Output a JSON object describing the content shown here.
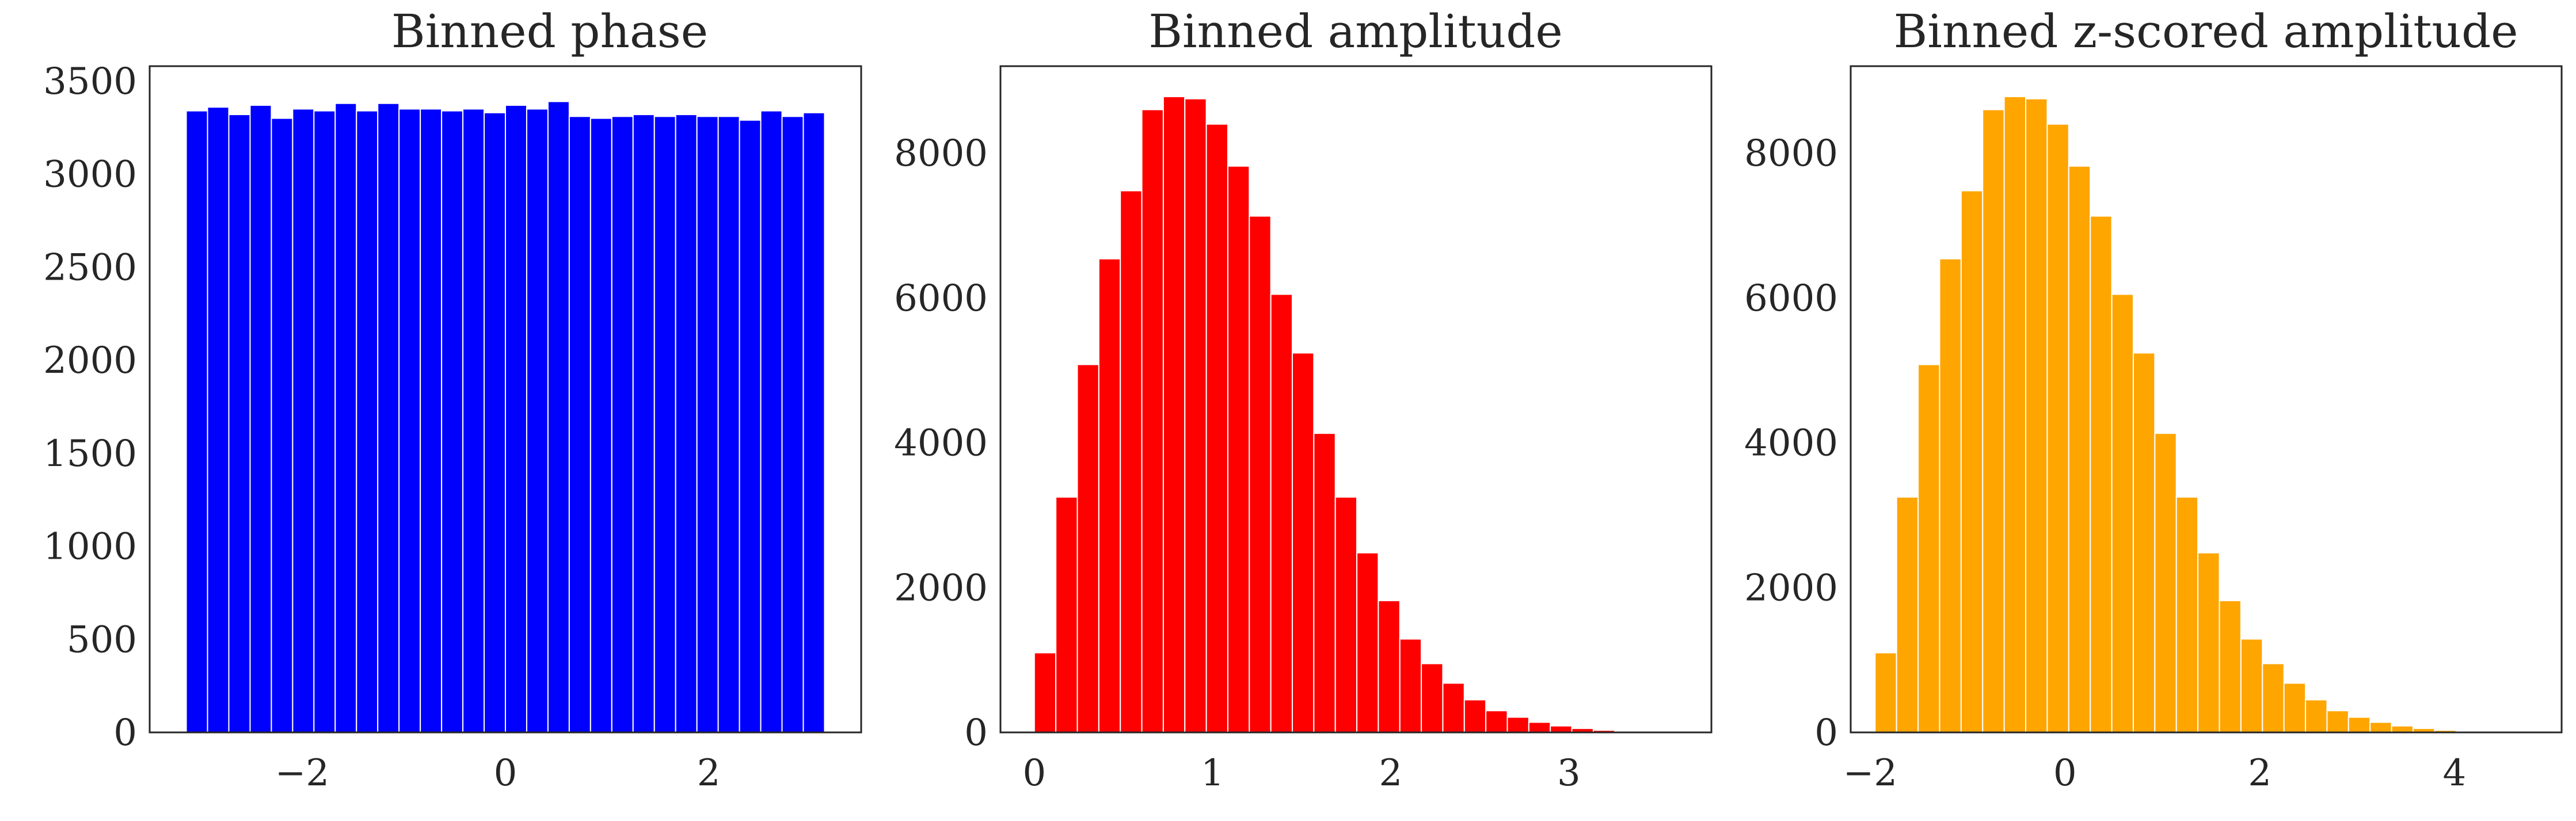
{
  "chart_data": [
    {
      "type": "bar",
      "title": "Binned phase",
      "xlabel": "",
      "ylabel": "",
      "grid": false,
      "color": "#0000ff",
      "xlim": [
        -3.5,
        3.5
      ],
      "ylim": [
        0,
        3580
      ],
      "xticks": [
        -2,
        0,
        2
      ],
      "xtick_labels": [
        "−2",
        "0",
        "2"
      ],
      "yticks": [
        0,
        500,
        1000,
        1500,
        2000,
        2500,
        3000,
        3500
      ],
      "ytick_labels": [
        "0",
        "500",
        "1000",
        "1500",
        "2000",
        "2500",
        "3000",
        "3500"
      ],
      "bin_range": [
        -3.14,
        3.14
      ],
      "values": [
        3340,
        3360,
        3320,
        3370,
        3300,
        3350,
        3340,
        3380,
        3340,
        3380,
        3350,
        3350,
        3340,
        3350,
        3330,
        3370,
        3350,
        3390,
        3310,
        3300,
        3310,
        3320,
        3310,
        3320,
        3310,
        3310,
        3290,
        3340,
        3310,
        3330
      ]
    },
    {
      "type": "bar",
      "title": "Binned amplitude",
      "xlabel": "",
      "ylabel": "",
      "grid": false,
      "color": "#ff0000",
      "xlim": [
        -0.19,
        3.8
      ],
      "ylim": [
        0,
        9200
      ],
      "xticks": [
        0,
        1,
        2,
        3
      ],
      "xtick_labels": [
        "0",
        "1",
        "2",
        "3"
      ],
      "yticks": [
        0,
        2000,
        4000,
        6000,
        8000
      ],
      "ytick_labels": [
        "0",
        "2000",
        "4000",
        "6000",
        "8000"
      ],
      "bin_range": [
        0.0,
        3.62
      ],
      "values": [
        1100,
        3250,
        5080,
        6540,
        7480,
        8600,
        8780,
        8750,
        8400,
        7820,
        7130,
        6050,
        5240,
        4130,
        3250,
        2480,
        1820,
        1290,
        950,
        680,
        450,
        300,
        210,
        140,
        90,
        55,
        30,
        15,
        8,
        4
      ]
    },
    {
      "type": "bar",
      "title": "Binned z-scored amplitude",
      "xlabel": "",
      "ylabel": "",
      "grid": false,
      "color": "#ffa500",
      "xlim": [
        -2.2,
        5.1
      ],
      "ylim": [
        0,
        9200
      ],
      "xticks": [
        -2,
        0,
        2,
        4
      ],
      "xtick_labels": [
        "−2",
        "0",
        "2",
        "4"
      ],
      "yticks": [
        0,
        2000,
        4000,
        6000,
        8000
      ],
      "ytick_labels": [
        "0",
        "2000",
        "4000",
        "6000",
        "8000"
      ],
      "bin_range": [
        -1.95,
        4.68
      ],
      "values": [
        1100,
        3250,
        5080,
        6540,
        7480,
        8600,
        8780,
        8750,
        8400,
        7820,
        7130,
        6050,
        5240,
        4130,
        3250,
        2480,
        1820,
        1290,
        950,
        680,
        450,
        300,
        210,
        140,
        90,
        55,
        30,
        15,
        8,
        4
      ]
    }
  ]
}
